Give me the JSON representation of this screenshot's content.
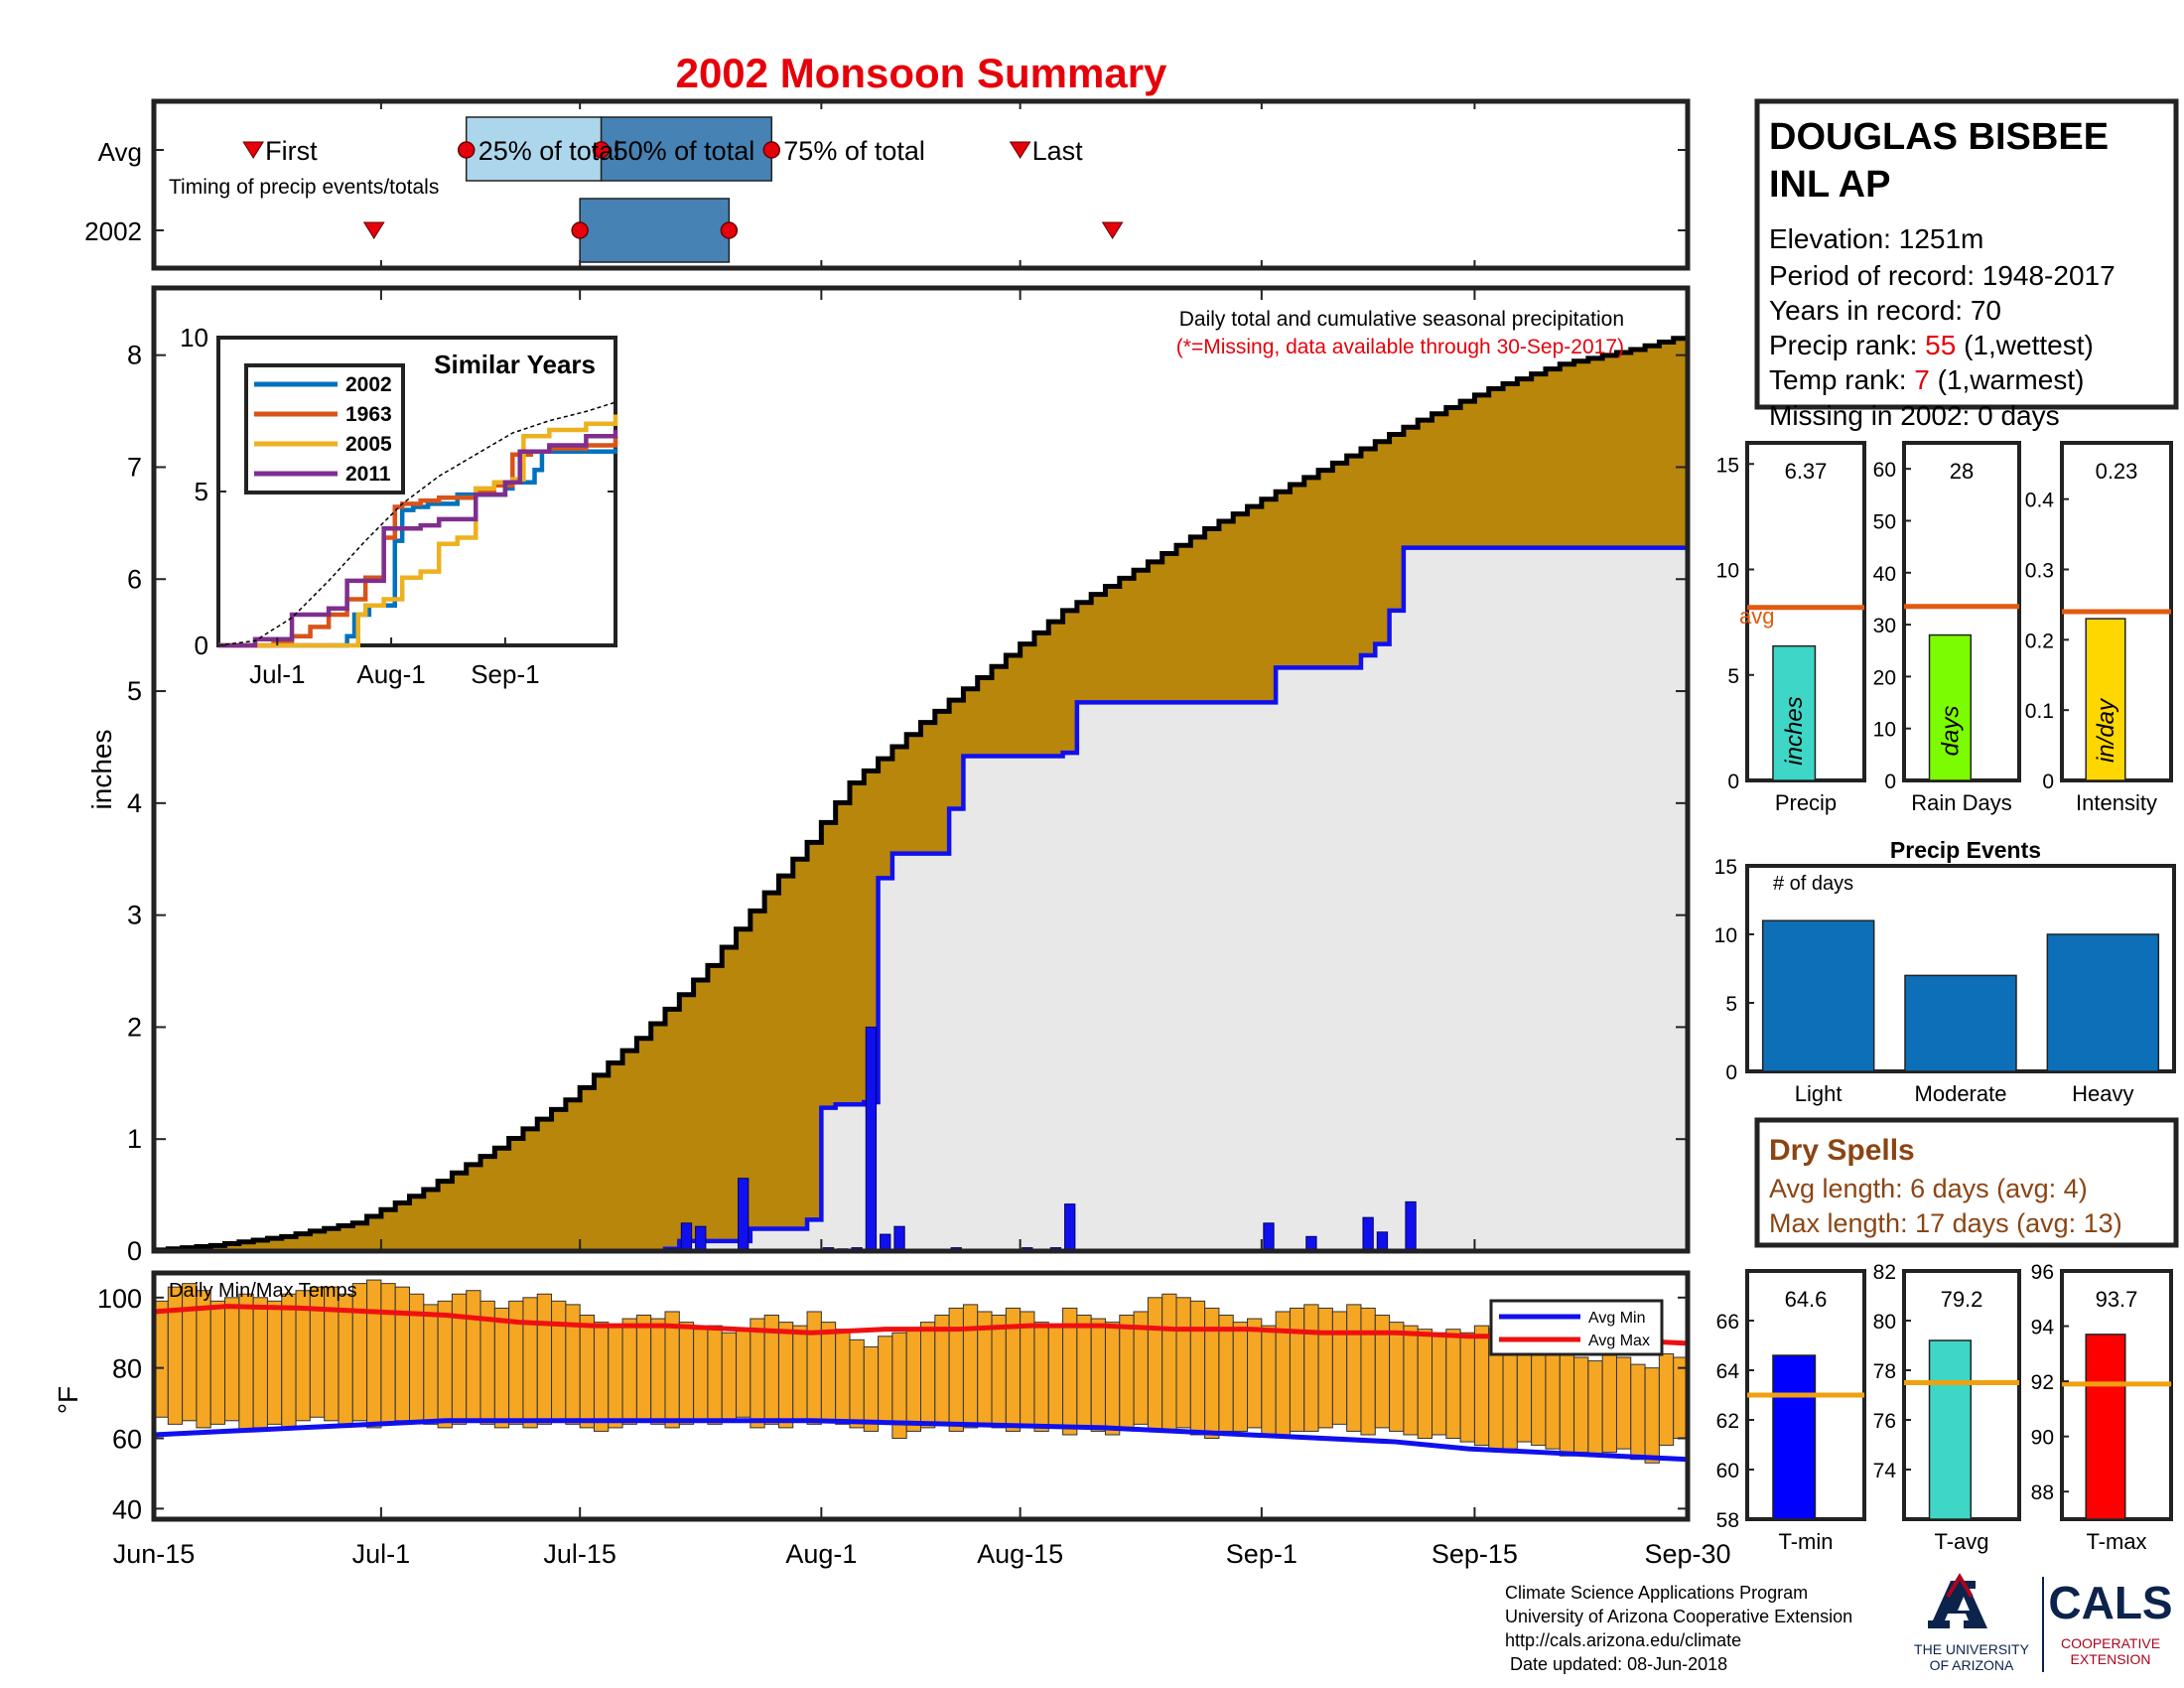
{
  "title": "2002 Monsoon Summary",
  "colors": {
    "title": "#e6000a",
    "cum_avg_fill": "#b8860b",
    "cum_year_fill": "#e8e8e8",
    "year_line": "#1010ee",
    "temp_bar": "#f5a623",
    "avg_line": "#e05a10",
    "precip_bar": "#3ed6c6",
    "raindays_bar": "#7cfc00",
    "intensity_bar": "#ffd700",
    "events_bar": "#0c6fb8",
    "tmin_bar": "#0000ff",
    "tavg_bar": "#3ed6c6",
    "tmax_bar": "#ff0000",
    "dry_spells_text": "#8b4513",
    "rank_value": "#e6000a"
  },
  "timing": {
    "row_labels": [
      "Avg",
      "2002"
    ],
    "note": "Timing of precip events/totals",
    "avg_labels": {
      "first": "First",
      "q25": "25% of total",
      "q50": "50% of total",
      "q75": "75% of total",
      "last": "Last"
    },
    "avg_days": {
      "first": 7,
      "q25": 22,
      "q50": 31.5,
      "q75": 43.5,
      "last": 61
    },
    "year_days": {
      "first": 15.5,
      "q25": 30,
      "q75": 40.5,
      "last": 67.5
    }
  },
  "station": {
    "name_line1": "DOUGLAS BISBEE",
    "name_line2": "INL AP",
    "elevation": "Elevation: 1251m",
    "period": "Period of record: 1948-2017",
    "years": "Years in record: 70",
    "precip_rank_label": "Precip rank: ",
    "precip_rank_value": "55",
    "precip_rank_note": " (1,wettest)",
    "temp_rank_label": "Temp rank: ",
    "temp_rank_value": "7",
    "temp_rank_note": " (1,warmest)",
    "missing": "Missing in 2002: 0 days"
  },
  "chart_data": [
    {
      "id": "cumulative_precip",
      "type": "area",
      "title": "Daily total and cumulative seasonal precipitation",
      "subtitle": "(*=Missing, data available through 30-Sep-2017)",
      "ylabel": "inches",
      "ylim": [
        0,
        8.6
      ],
      "yticks": [
        0,
        1,
        2,
        3,
        4,
        5,
        6,
        7,
        8
      ],
      "xlim": [
        0,
        108
      ],
      "x_tick_days": [
        0,
        16,
        30,
        47,
        61,
        78,
        93,
        108
      ],
      "x_tick_labels": [
        "Jun-15",
        "Jul-1",
        "Jul-15",
        "Aug-1",
        "Aug-15",
        "Sep-1",
        "Sep-15",
        "Sep-30"
      ],
      "series": [
        {
          "name": "Avg cumulative",
          "x": [
            0,
            5,
            10,
            15,
            20,
            25,
            30,
            35,
            40,
            44,
            47,
            50,
            55,
            60,
            65,
            70,
            75,
            80,
            85,
            90,
            95,
            100,
            105,
            108
          ],
          "y": [
            0,
            0.05,
            0.13,
            0.25,
            0.55,
            0.92,
            1.35,
            1.9,
            2.55,
            3.2,
            3.65,
            4.18,
            4.72,
            5.22,
            5.72,
            6.08,
            6.45,
            6.78,
            7.1,
            7.42,
            7.7,
            7.92,
            8.05,
            8.15
          ]
        },
        {
          "name": "2002 cumulative",
          "x": [
            0,
            23,
            35,
            36,
            37,
            41,
            42,
            46,
            47,
            48,
            50,
            51,
            52,
            56,
            57,
            64,
            65,
            78,
            79,
            84,
            85,
            86,
            87,
            88,
            107,
            108
          ],
          "y": [
            0,
            0,
            0,
            0.02,
            0.09,
            0.09,
            0.2,
            0.28,
            1.28,
            1.31,
            1.33,
            3.33,
            3.55,
            3.95,
            4.42,
            4.45,
            4.9,
            4.9,
            5.21,
            5.21,
            5.32,
            5.42,
            5.72,
            6.28,
            6.28,
            6.31
          ]
        },
        {
          "name": "2002 daily",
          "x": [
            36,
            37,
            38,
            41,
            47,
            48,
            49,
            50,
            51,
            52,
            56,
            61,
            63,
            64,
            78,
            81,
            85,
            86,
            88
          ],
          "y": [
            0.02,
            0.25,
            0.22,
            0.65,
            0.03,
            0.02,
            0.03,
            2.0,
            0.15,
            0.22,
            0.03,
            0.03,
            0.03,
            0.42,
            0.25,
            0.13,
            0.3,
            0.17,
            0.44
          ]
        }
      ]
    },
    {
      "id": "similar_years",
      "type": "line",
      "title": "Similar Years",
      "ylim": [
        0,
        10
      ],
      "yticks": [
        0,
        5,
        10
      ],
      "x_tick_labels": [
        "Jul-1",
        "Aug-1",
        "Sep-1"
      ],
      "x_tick_days": [
        16,
        47,
        78
      ],
      "xlim": [
        0,
        108
      ],
      "series": [
        {
          "name": "2002",
          "color": "#0072bd",
          "x": [
            0,
            30,
            35,
            37,
            41,
            47,
            48,
            50,
            53,
            57,
            65,
            78,
            80,
            86,
            88,
            100,
            108
          ],
          "y": [
            0,
            0,
            0.3,
            1.0,
            1.3,
            1.3,
            3.4,
            4.4,
            4.5,
            4.6,
            4.9,
            5.1,
            5.3,
            5.7,
            6.3,
            6.3,
            6.4
          ]
        },
        {
          "name": "1963",
          "color": "#d95319",
          "x": [
            0,
            15,
            20,
            25,
            30,
            35,
            40,
            45,
            48,
            50,
            55,
            60,
            70,
            75,
            80,
            85,
            90,
            100,
            108
          ],
          "y": [
            0,
            0.1,
            0.3,
            0.6,
            1.0,
            1.5,
            2.2,
            3.5,
            4.5,
            4.6,
            4.7,
            4.8,
            5.0,
            5.2,
            6.2,
            6.3,
            6.4,
            6.5,
            6.8
          ]
        },
        {
          "name": "2005",
          "color": "#edb120",
          "x": [
            0,
            30,
            38,
            40,
            45,
            50,
            55,
            60,
            65,
            70,
            75,
            80,
            83,
            90,
            100,
            108
          ],
          "y": [
            0,
            0,
            1.0,
            1.3,
            1.5,
            2.2,
            2.4,
            3.3,
            3.5,
            5.1,
            5.3,
            5.4,
            6.8,
            7.0,
            7.2,
            7.5
          ]
        },
        {
          "name": "2011",
          "color": "#7e2f8e",
          "x": [
            0,
            10,
            20,
            30,
            35,
            45,
            50,
            55,
            60,
            70,
            78,
            82,
            90,
            100,
            108
          ],
          "y": [
            0,
            0.2,
            1.0,
            1.2,
            2.1,
            3.8,
            3.8,
            3.9,
            4.1,
            4.9,
            5.3,
            6.3,
            6.5,
            6.8,
            7.0
          ]
        },
        {
          "name": "Avg",
          "color": "#000000",
          "dashed": true,
          "x": [
            0,
            10,
            20,
            30,
            40,
            50,
            60,
            70,
            80,
            90,
            100,
            108
          ],
          "y": [
            0,
            0.15,
            0.9,
            2.1,
            3.4,
            4.6,
            5.5,
            6.2,
            6.9,
            7.3,
            7.6,
            7.9
          ]
        }
      ]
    },
    {
      "id": "daily_temps",
      "type": "bar",
      "title": "Daily Min/Max Temps",
      "ylabel": "°F",
      "ylim": [
        37,
        107
      ],
      "yticks": [
        40,
        60,
        80,
        100
      ],
      "xlim": [
        0,
        108
      ],
      "legend": [
        "Avg Min",
        "Avg Max"
      ],
      "tmax": [
        99,
        103,
        104,
        102,
        99,
        100,
        101,
        100,
        99,
        101,
        102,
        103,
        103,
        101,
        104,
        105,
        104,
        103,
        101,
        98,
        99,
        101,
        102,
        99,
        97,
        99,
        100,
        101,
        99,
        98,
        95,
        93,
        92,
        94,
        95,
        94,
        96,
        93,
        91,
        92,
        90,
        91,
        94,
        95,
        93,
        92,
        96,
        93,
        91,
        88,
        86,
        89,
        90,
        91,
        93,
        95,
        97,
        98,
        96,
        95,
        97,
        96,
        93,
        92,
        97,
        95,
        94,
        93,
        95,
        96,
        100,
        101,
        100,
        99,
        97,
        95,
        93,
        94,
        92,
        96,
        97,
        98,
        97,
        96,
        98,
        97,
        95,
        93,
        92,
        91,
        90,
        91,
        90,
        92,
        91,
        90,
        89,
        88,
        86,
        84,
        83,
        82,
        84,
        83,
        81,
        80,
        84,
        83
      ],
      "tmin": [
        66,
        64,
        65,
        63,
        64,
        65,
        62,
        63,
        64,
        63,
        65,
        66,
        65,
        64,
        65,
        63,
        64,
        65,
        65,
        64,
        63,
        64,
        65,
        64,
        63,
        64,
        63,
        64,
        65,
        64,
        63,
        62,
        63,
        64,
        65,
        64,
        63,
        64,
        65,
        64,
        65,
        66,
        63,
        64,
        63,
        65,
        64,
        65,
        64,
        63,
        62,
        64,
        60,
        62,
        63,
        64,
        62,
        63,
        64,
        63,
        62,
        63,
        62,
        63,
        61,
        63,
        62,
        61,
        63,
        64,
        62,
        62,
        63,
        61,
        60,
        62,
        62,
        63,
        61,
        61,
        62,
        62,
        63,
        64,
        62,
        61,
        63,
        62,
        61,
        60,
        61,
        60,
        59,
        58,
        57,
        57,
        59,
        58,
        57,
        55,
        56,
        55,
        56,
        57,
        54,
        53,
        58,
        60
      ],
      "avg_min": [
        61,
        62,
        63,
        64,
        65,
        65,
        65,
        65,
        65,
        65,
        64.5,
        64,
        63.5,
        63,
        62,
        61,
        60,
        59,
        57,
        56,
        55,
        54
      ],
      "avg_max": [
        96,
        97.5,
        97,
        96,
        95,
        93,
        92,
        92,
        91,
        90,
        91,
        91,
        92,
        92,
        91,
        91,
        90,
        90,
        89,
        89,
        88,
        87
      ]
    },
    {
      "id": "seasonal_totals",
      "type": "bar",
      "panels": [
        {
          "label": "Precip",
          "unit_label": "inches",
          "value": 6.37,
          "value_text": "6.37",
          "avg": 8.2,
          "avg_label": "avg",
          "ylim": [
            0,
            16
          ],
          "yticks": [
            0,
            5,
            10,
            15
          ]
        },
        {
          "label": "Rain Days",
          "unit_label": "days",
          "value": 28,
          "value_text": "28",
          "avg": 33.5,
          "ylim": [
            0,
            65
          ],
          "yticks": [
            0,
            10,
            20,
            30,
            40,
            50,
            60
          ]
        },
        {
          "label": "Intensity",
          "unit_label": "in/day",
          "value": 0.23,
          "value_text": "0.23",
          "avg": 0.24,
          "ylim": [
            0,
            0.48
          ],
          "yticks": [
            0,
            0.1,
            0.2,
            0.3,
            0.4
          ]
        }
      ]
    },
    {
      "id": "precip_events",
      "type": "bar",
      "title": "Precip Events",
      "ylabel": "# of days",
      "ylim": [
        0,
        15
      ],
      "yticks": [
        0,
        5,
        10,
        15
      ],
      "categories": [
        "Light",
        "Moderate",
        "Heavy"
      ],
      "values": [
        11,
        7,
        10
      ]
    },
    {
      "id": "seasonal_temps",
      "type": "bar",
      "panels": [
        {
          "label": "T-min",
          "value": 64.6,
          "value_text": "64.6",
          "avg": 63.0,
          "ylim": [
            58,
            68
          ],
          "yticks": [
            58,
            60,
            62,
            64,
            66
          ]
        },
        {
          "label": "T-avg",
          "value": 79.2,
          "value_text": "79.2",
          "avg": 77.5,
          "ylim": [
            72,
            82
          ],
          "yticks": [
            74,
            76,
            78,
            80,
            82
          ]
        },
        {
          "label": "T-max",
          "value": 93.7,
          "value_text": "93.7",
          "avg": 91.9,
          "ylim": [
            87,
            96
          ],
          "yticks": [
            88,
            90,
            92,
            94,
            96
          ]
        }
      ]
    }
  ],
  "dry_spells": {
    "title": "Dry Spells",
    "avg_length": "Avg length: 6 days (avg: 4)",
    "max_length": "Max length: 17 days (avg: 13)"
  },
  "footer": {
    "lines": [
      "Climate Science Applications Program",
      "University of Arizona Cooperative Extension",
      "http://cals.arizona.edu/climate",
      " Date updated: 08-Jun-2018"
    ],
    "ua_logo_text_1": "THE UNIVERSITY",
    "ua_logo_text_2": "OF ARIZONA",
    "cals_logo": "CALS",
    "cals_sub_1": "COOPERATIVE",
    "cals_sub_2": "EXTENSION"
  }
}
